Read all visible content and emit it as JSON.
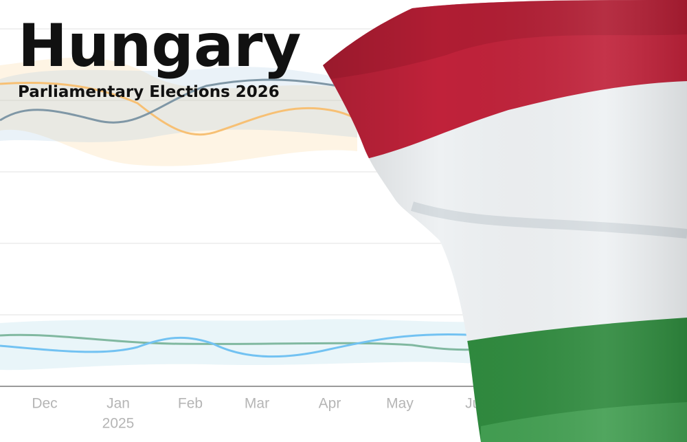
{
  "header": {
    "title": "Hungary",
    "subtitle": "Parliamentary Elections 2026"
  },
  "axis": {
    "months": [
      "Dec",
      "Jan",
      "Feb",
      "Mar",
      "Apr",
      "May",
      "Jun"
    ],
    "year": "2025"
  }
}
